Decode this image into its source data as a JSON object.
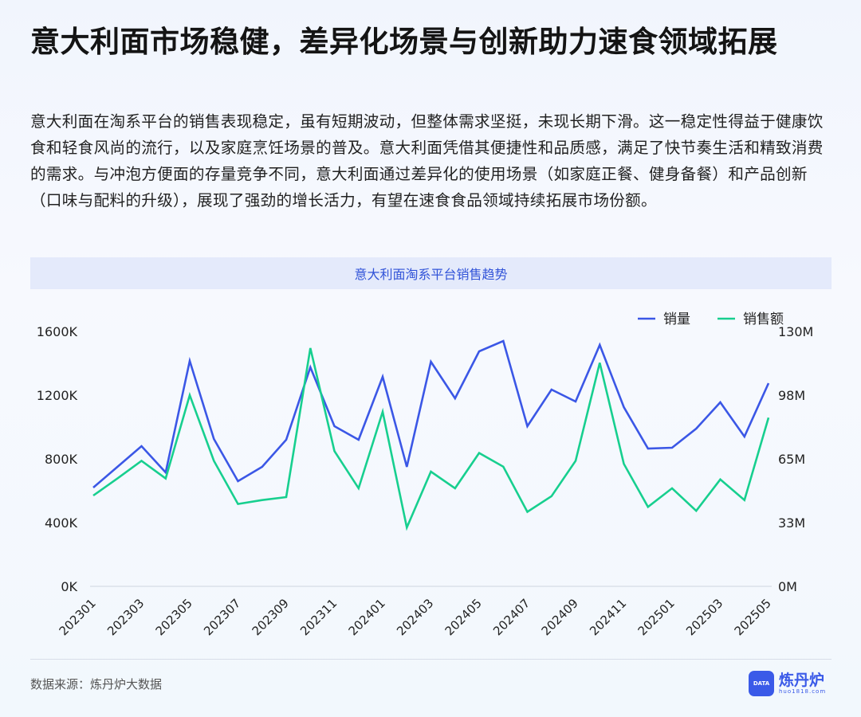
{
  "header": {
    "title": "意大利面市场稳健，差异化场景与创新助力速食领域拓展",
    "description": "意大利面在淘系平台的销售表现稳定，虽有短期波动，但整体需求坚挺，未现长期下滑。这一稳定性得益于健康饮食和轻食风尚的流行，以及家庭烹饪场景的普及。意大利面凭借其便捷性和品质感，满足了快节奏生活和精致消费的需求。与冲泡方便面的存量竞争不同，意大利面通过差异化的使用场景（如家庭正餐、健身备餐）和产品创新（口味与配料的升级），展现了强劲的增长活力，有望在速食食品领域持续拓展市场份额。"
  },
  "chart_data": {
    "type": "line",
    "title": "意大利面淘系平台销售趋势",
    "x": [
      "202301",
      "202302",
      "202303",
      "202304",
      "202305",
      "202306",
      "202307",
      "202308",
      "202309",
      "202310",
      "202311",
      "202312",
      "202401",
      "202402",
      "202403",
      "202404",
      "202405",
      "202406",
      "202407",
      "202408",
      "202409",
      "202410",
      "202411",
      "202412",
      "202501",
      "202502",
      "202503",
      "202504",
      "202505"
    ],
    "x_tick_labels": [
      "202301",
      "202303",
      "202305",
      "202307",
      "202309",
      "202311",
      "202401",
      "202403",
      "202405",
      "202407",
      "202409",
      "202411",
      "202501",
      "202503",
      "202505"
    ],
    "y_left": {
      "range": [
        0,
        1600
      ],
      "unit": "K",
      "ticks": [
        "0K",
        "400K",
        "800K",
        "1200K",
        "1600K"
      ]
    },
    "y_right": {
      "range": [
        0,
        130
      ],
      "unit": "M",
      "ticks": [
        "0M",
        "33M",
        "65M",
        "98M",
        "130M"
      ]
    },
    "grid": false,
    "legend_position": "top-right",
    "series": [
      {
        "name": "销量",
        "axis": "left",
        "color": "#3b57e6",
        "values": [
          620,
          750,
          880,
          715,
          1415,
          925,
          660,
          750,
          920,
          1375,
          1005,
          920,
          1315,
          750,
          1410,
          1180,
          1475,
          1540,
          1005,
          1235,
          1160,
          1515,
          1125,
          865,
          870,
          990,
          1155,
          940,
          1275
        ]
      },
      {
        "name": "销售额",
        "axis": "right",
        "color": "#17cf8f",
        "values": [
          46.3,
          55,
          64,
          55,
          97.5,
          64,
          42,
          44,
          45.5,
          121.5,
          69,
          50,
          89,
          30,
          58.5,
          50,
          68,
          61,
          38,
          46,
          64,
          114,
          62.5,
          40.5,
          50,
          38.5,
          54.5,
          44,
          86
        ]
      }
    ]
  },
  "footer": {
    "source": "数据来源：炼丹炉大数据",
    "logo_name": "炼丹炉",
    "logo_url": "huo1818.com",
    "logo_badge": "DATA"
  }
}
